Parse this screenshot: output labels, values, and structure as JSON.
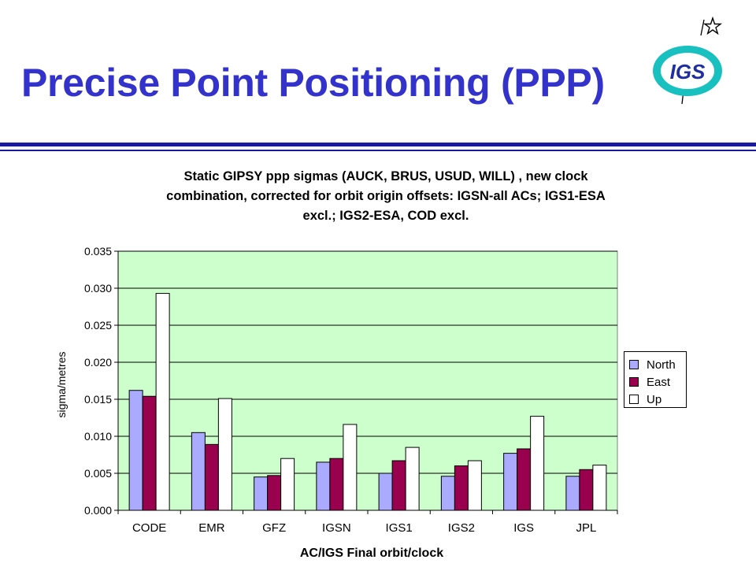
{
  "slide": {
    "title": "Precise Point Positioning (PPP)",
    "logo_text": "IGS"
  },
  "colors": {
    "title": "#3333cc",
    "divider": "#1a1aa0",
    "plot_background": "#ccffcc",
    "logo_ring": "#19c0c0",
    "logo_fill": "#ffffff",
    "logo_text": "#1f2ea0"
  },
  "chart_data": {
    "type": "bar",
    "title_lines": [
      "Static GIPSY ppp sigmas (AUCK, BRUS, USUD, WILL) , new clock",
      "combination, corrected for orbit origin offsets: IGSN-all ACs; IGS1-ESA",
      "excl.; IGS2-ESA, COD excl."
    ],
    "xlabel": "AC/IGS Final  orbit/clock",
    "ylabel": "sigma/metres",
    "ylim": [
      0,
      0.035
    ],
    "yticks": [
      "0.000",
      "0.005",
      "0.010",
      "0.015",
      "0.020",
      "0.025",
      "0.030",
      "0.035"
    ],
    "grid": true,
    "legend_position": "right",
    "categories": [
      "CODE",
      "EMR",
      "GFZ",
      "IGSN",
      "IGS1",
      "IGS2",
      "IGS",
      "JPL"
    ],
    "series": [
      {
        "name": "North",
        "color": "#aaaaff",
        "values": [
          0.0162,
          0.0105,
          0.0045,
          0.0065,
          0.005,
          0.0046,
          0.0077,
          0.0046
        ]
      },
      {
        "name": "East",
        "color": "#99004d",
        "values": [
          0.0154,
          0.0089,
          0.0047,
          0.007,
          0.0067,
          0.006,
          0.0083,
          0.0055
        ]
      },
      {
        "name": "Up",
        "color": "#ffffff",
        "values": [
          0.0293,
          0.0151,
          0.007,
          0.0116,
          0.0085,
          0.0067,
          0.0127,
          0.0061
        ]
      }
    ]
  }
}
